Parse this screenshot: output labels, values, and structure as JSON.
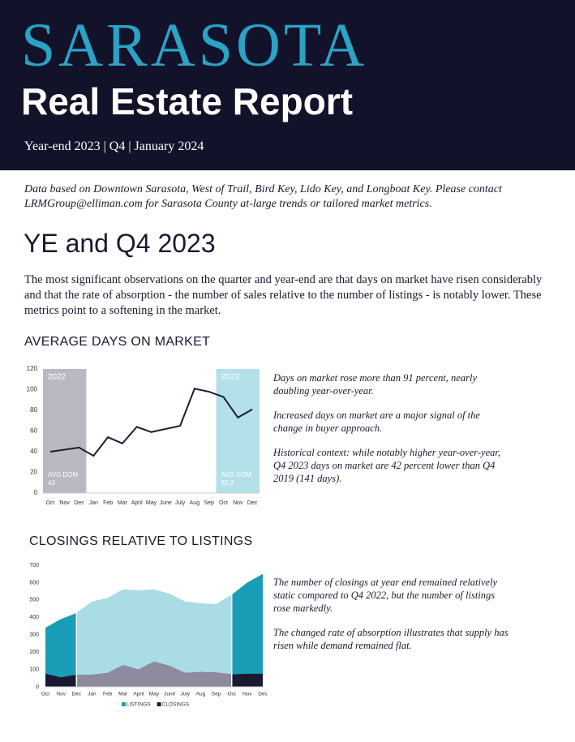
{
  "header": {
    "city": "SARASOTA",
    "title": "Real Estate Report",
    "subtitle": "Year-end 2023 | Q4 | January 2024"
  },
  "intro": "Data based on Downtown Sarasota, West of Trail, Bird Key, Lido Key, and Longboat Key. Please contact LRMGroup@elliman.com for Sarasota County at-large trends or tailored market metrics.",
  "section_title": "YE and Q4 2023",
  "summary": "The most significant observations on the quarter and year-end are that days on market have risen considerably and that the rate of absorption - the number of sales relative to the number of listings - is notably lower. These metrics point to a softening in the market.",
  "commentary": [
    [
      "Days on market rose more than 91 percent, nearly doubling year-over-year.",
      "Increased days on market are a major signal of the change in buyer approach.",
      "Historical context: while notably higher year-over-year, Q4 2023 days on market are 42 percent lower than Q4 2019 (141 days)."
    ],
    [
      "The number of closings at year end remained relatively static compared to Q4 2022, but the number of listings rose markedly.",
      "The changed rate of absorption illustrates that supply has risen while demand remained flat."
    ]
  ],
  "chart_data": [
    {
      "type": "line",
      "title": "AVERAGE DAYS ON MARKET",
      "categories": [
        "Oct",
        "Nov",
        "Dec",
        "Jan",
        "Feb",
        "Mar",
        "April",
        "May",
        "June",
        "July",
        "Aug",
        "Sep",
        "Oct",
        "Nov",
        "Dec"
      ],
      "values": [
        40,
        42,
        44,
        36,
        54,
        48,
        64,
        59,
        62,
        65,
        101,
        98,
        93,
        73,
        81
      ],
      "color": "#1c1c34",
      "ylim": [
        0,
        120
      ],
      "yticks": [
        0,
        20,
        40,
        60,
        80,
        100,
        120
      ],
      "highlights": [
        {
          "label": "2022",
          "caption": "AVG DOM",
          "value": 43,
          "from": 0,
          "to": 2,
          "color": "#b9b9c2"
        },
        {
          "label": "2023",
          "caption": "AVG DOM",
          "value": 82.3,
          "from": 12,
          "to": 14,
          "color": "#b3e0e9"
        }
      ]
    },
    {
      "type": "area",
      "title": "CLOSINGS RELATIVE TO LISTINGS",
      "categories": [
        "Oct",
        "Nov",
        "Dec",
        "Jan",
        "Feb",
        "Mar",
        "April",
        "May",
        "June",
        "July",
        "Aug",
        "Sep",
        "Oct",
        "Nov",
        "Dec"
      ],
      "series": [
        {
          "name": "LISTINGS",
          "color": "#1a9db6",
          "values": [
            340,
            390,
            425,
            490,
            510,
            560,
            555,
            560,
            535,
            490,
            480,
            475,
            530,
            600,
            650
          ]
        },
        {
          "name": "CLOSINGS",
          "color": "#1a1a33",
          "values": [
            75,
            55,
            70,
            70,
            80,
            125,
            100,
            145,
            120,
            80,
            85,
            82,
            72,
            75,
            75
          ]
        }
      ],
      "ylim": [
        0,
        700
      ],
      "yticks": [
        0,
        100,
        200,
        300,
        400,
        500,
        600,
        700
      ],
      "highlight": {
        "from": 2,
        "to": 12,
        "colors": [
          "#aadce6",
          "#8d8b9d"
        ]
      }
    }
  ]
}
